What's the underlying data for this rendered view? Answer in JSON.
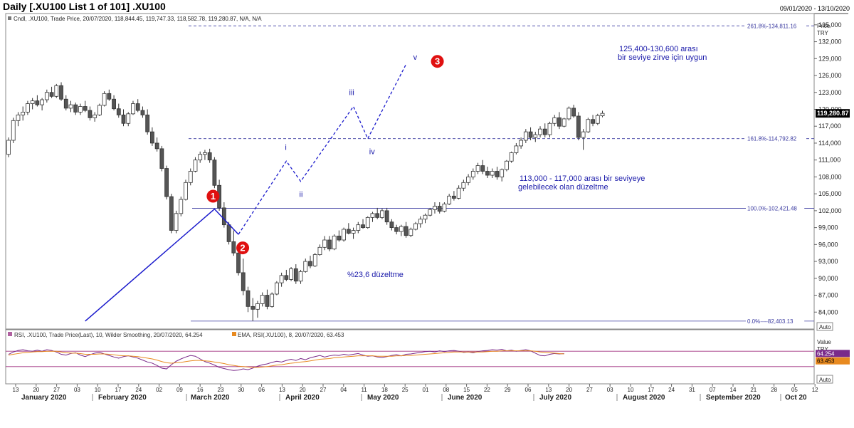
{
  "header": {
    "title": "Daily [.XU100 List 1 of 101] .XU100",
    "date_range": "09/01/2020 - 13/10/2020"
  },
  "price_panel": {
    "legend": "Cndl, .XU100, Trade Price, 20/07/2020, 118,844.45, 119,747.33, 118,582.78, 119,280.87, N/A, N/A",
    "axis_title_1": "Price",
    "axis_title_2": "TRY",
    "auto_label": "Auto",
    "last_price": "119,280.87"
  },
  "rsi_panel": {
    "legend_rsi": "RSI, .XU100, Trade Price(Last),  10, Wilder Smoothing, 20/07/2020, 64.254",
    "legend_ema": "EMA, RSI(.XU100),  8, 20/07/2020, 63.453",
    "axis_title_1": "Value",
    "axis_title_2": "TRY",
    "auto_label": "Auto",
    "rsi_value": "64.254",
    "ema_value": "63.453"
  },
  "colors": {
    "wave": "#1a1acc",
    "annotation_text": "#1a1aaa",
    "marker_red": "#e01010",
    "rsi_line": "#7a2a8a",
    "ema_line": "#e88a20",
    "rsi_band": "#a03080"
  },
  "chart_data": {
    "type": "candlestick",
    "ylim": [
      81000,
      137000
    ],
    "yticks": [
      "84,000",
      "87,000",
      "90,000",
      "93,000",
      "96,000",
      "99,000",
      "102,000",
      "105,000",
      "108,000",
      "111,000",
      "114,000",
      "117,000",
      "120,000",
      "123,000",
      "126,000",
      "129,000",
      "132,000",
      "135,000"
    ],
    "x_ticks": [
      "13",
      "20",
      "27",
      "03",
      "10",
      "17",
      "24",
      "02",
      "09",
      "16",
      "23",
      "30",
      "06",
      "13",
      "20",
      "27",
      "04",
      "11",
      "18",
      "25",
      "01",
      "08",
      "15",
      "22",
      "29",
      "06",
      "13",
      "20",
      "27",
      "03",
      "10",
      "17",
      "24",
      "31",
      "07",
      "14",
      "21",
      "28",
      "05",
      "12"
    ],
    "months": [
      "January 2020",
      "February 2020",
      "March 2020",
      "April 2020",
      "May 2020",
      "June 2020",
      "July 2020",
      "August 2020",
      "September 2020",
      "Oct 20"
    ],
    "levels": [
      {
        "label": "261.8%-134,811.16",
        "value": 134811
      },
      {
        "label": "161.8%-114,792.82",
        "value": 114793
      },
      {
        "label": "100.0%-102,421.48",
        "value": 102421
      },
      {
        "label": "0.0%----82,403.13",
        "value": 82403
      }
    ],
    "candles": [
      [
        112000,
        115000,
        111500,
        114500
      ],
      [
        114500,
        118500,
        114000,
        118000
      ],
      [
        118000,
        119500,
        117000,
        119000
      ],
      [
        119000,
        120500,
        118000,
        119500
      ],
      [
        119500,
        121500,
        119000,
        121000
      ],
      [
        121000,
        122000,
        120000,
        121500
      ],
      [
        121500,
        122500,
        120500,
        120800
      ],
      [
        120800,
        122000,
        119800,
        121700
      ],
      [
        121700,
        123500,
        121200,
        123000
      ],
      [
        123000,
        124000,
        122000,
        122300
      ],
      [
        122300,
        124500,
        122000,
        124200
      ],
      [
        124200,
        124800,
        121500,
        121800
      ],
      [
        121800,
        122500,
        119800,
        120200
      ],
      [
        120200,
        121500,
        119500,
        120800
      ],
      [
        120800,
        121200,
        119000,
        119500
      ],
      [
        119500,
        121000,
        119000,
        120500
      ],
      [
        120500,
        121500,
        119500,
        119800
      ],
      [
        119800,
        120500,
        118000,
        118500
      ],
      [
        118500,
        119500,
        117800,
        119000
      ],
      [
        119000,
        121000,
        118800,
        120700
      ],
      [
        120700,
        123200,
        120500,
        122800
      ],
      [
        122800,
        123500,
        121500,
        121800
      ],
      [
        121800,
        122500,
        119800,
        120100
      ],
      [
        120100,
        121000,
        118500,
        119000
      ],
      [
        119000,
        120000,
        117000,
        117500
      ],
      [
        117500,
        119500,
        117000,
        119200
      ],
      [
        119200,
        121500,
        119000,
        121000
      ],
      [
        121000,
        121800,
        119500,
        119800
      ],
      [
        119800,
        120500,
        118500,
        119000
      ],
      [
        119000,
        120000,
        115500,
        116000
      ],
      [
        116000,
        116800,
        113500,
        114000
      ],
      [
        114000,
        115000,
        112500,
        113000
      ],
      [
        113000,
        113500,
        109000,
        109500
      ],
      [
        109500,
        110000,
        104000,
        104500
      ],
      [
        104500,
        105000,
        98000,
        98500
      ],
      [
        98500,
        102000,
        98000,
        101500
      ],
      [
        101500,
        104500,
        101000,
        104000
      ],
      [
        104000,
        107500,
        103800,
        107000
      ],
      [
        107000,
        109500,
        106500,
        109000
      ],
      [
        109000,
        111500,
        108800,
        111000
      ],
      [
        111000,
        112500,
        110500,
        112000
      ],
      [
        112000,
        112800,
        111000,
        112300
      ],
      [
        112300,
        113000,
        110500,
        111000
      ],
      [
        111000,
        111500,
        106000,
        106500
      ],
      [
        106500,
        107500,
        102000,
        102500
      ],
      [
        102500,
        103500,
        99000,
        99500
      ],
      [
        99500,
        100000,
        96000,
        96500
      ],
      [
        96500,
        98500,
        94000,
        94500
      ],
      [
        94500,
        95500,
        90500,
        91000
      ],
      [
        91000,
        93500,
        87000,
        87800
      ],
      [
        87800,
        88500,
        84000,
        85000
      ],
      [
        85000,
        86500,
        82400,
        84500
      ],
      [
        84500,
        86000,
        83000,
        85500
      ],
      [
        85500,
        87500,
        85000,
        87000
      ],
      [
        87000,
        88000,
        84500,
        85000
      ],
      [
        85000,
        87500,
        84800,
        87200
      ],
      [
        87200,
        89500,
        87000,
        89200
      ],
      [
        89200,
        91000,
        88500,
        90500
      ],
      [
        90500,
        91500,
        89500,
        89800
      ],
      [
        89800,
        92000,
        89500,
        91700
      ],
      [
        91700,
        92500,
        89000,
        89500
      ],
      [
        89500,
        91500,
        89000,
        91200
      ],
      [
        91200,
        93500,
        91000,
        93000
      ],
      [
        93000,
        94000,
        91800,
        92200
      ],
      [
        92200,
        94500,
        92000,
        94200
      ],
      [
        94200,
        96000,
        94000,
        95500
      ],
      [
        95500,
        97500,
        95000,
        96800
      ],
      [
        96800,
        97500,
        94800,
        95200
      ],
      [
        95200,
        97800,
        95000,
        97500
      ],
      [
        97500,
        98500,
        96500,
        96800
      ],
      [
        96800,
        99000,
        96500,
        98700
      ],
      [
        98700,
        99800,
        97800,
        98000
      ],
      [
        98000,
        99000,
        97000,
        98500
      ],
      [
        98500,
        100000,
        98000,
        99500
      ],
      [
        99500,
        100500,
        98800,
        99000
      ],
      [
        99000,
        101000,
        98800,
        100800
      ],
      [
        100800,
        101800,
        100000,
        101500
      ],
      [
        101500,
        102500,
        100500,
        100800
      ],
      [
        100800,
        102400,
        100500,
        102000
      ],
      [
        102000,
        102500,
        99500,
        100000
      ],
      [
        100000,
        100500,
        98500,
        99000
      ],
      [
        99000,
        99500,
        97800,
        98300
      ],
      [
        98300,
        99500,
        97500,
        99200
      ],
      [
        99200,
        100000,
        97200,
        97600
      ],
      [
        97600,
        99000,
        97300,
        98700
      ],
      [
        98700,
        100000,
        98500,
        99700
      ],
      [
        99700,
        101000,
        99000,
        100500
      ],
      [
        100500,
        101500,
        99800,
        101200
      ],
      [
        101200,
        102500,
        101000,
        102200
      ],
      [
        102200,
        103500,
        101500,
        102800
      ],
      [
        102800,
        103500,
        101500,
        101900
      ],
      [
        101900,
        103500,
        101700,
        103200
      ],
      [
        103200,
        105000,
        103000,
        104600
      ],
      [
        104600,
        105500,
        103800,
        104200
      ],
      [
        104200,
        106500,
        104000,
        106000
      ],
      [
        106000,
        107500,
        105500,
        107000
      ],
      [
        107000,
        108500,
        106500,
        108000
      ],
      [
        108000,
        109500,
        107500,
        109000
      ],
      [
        109000,
        110500,
        108500,
        110000
      ],
      [
        110000,
        111000,
        108500,
        109000
      ],
      [
        109000,
        109800,
        107800,
        108300
      ],
      [
        108300,
        109500,
        107800,
        109000
      ],
      [
        109000,
        109800,
        107500,
        108000
      ],
      [
        108000,
        109500,
        107200,
        109300
      ],
      [
        109300,
        111000,
        109000,
        110800
      ],
      [
        110800,
        112500,
        110500,
        112300
      ],
      [
        112300,
        114000,
        112000,
        113500
      ],
      [
        113500,
        115000,
        113000,
        114500
      ],
      [
        114500,
        116500,
        114000,
        116000
      ],
      [
        116000,
        116800,
        114500,
        115000
      ],
      [
        115000,
        116000,
        114200,
        115500
      ],
      [
        115500,
        117000,
        115000,
        116500
      ],
      [
        116500,
        117500,
        115000,
        115500
      ],
      [
        115500,
        117800,
        115000,
        117500
      ],
      [
        117500,
        119000,
        117000,
        118500
      ],
      [
        118500,
        119500,
        116500,
        117000
      ],
      [
        117000,
        118500,
        116800,
        118300
      ],
      [
        118300,
        120500,
        118000,
        120200
      ],
      [
        120200,
        120800,
        118500,
        118800
      ],
      [
        118800,
        119500,
        114500,
        115000
      ],
      [
        115000,
        116500,
        112800,
        116000
      ],
      [
        116000,
        118500,
        115800,
        118200
      ],
      [
        118200,
        119000,
        117000,
        117500
      ],
      [
        117500,
        119200,
        117200,
        118900
      ],
      [
        118844,
        119747,
        118583,
        119281
      ]
    ],
    "wave_path": [
      [
        16,
        "wave_low"
      ],
      [
        43,
        "w1"
      ],
      [
        48,
        "w2"
      ],
      [
        58,
        "wi"
      ],
      [
        61,
        "wii"
      ],
      [
        72,
        "wiii"
      ],
      [
        75,
        "wiv"
      ],
      [
        83,
        "wv"
      ]
    ],
    "wave_values": {
      "wave_low": 82400,
      "w1": 102300,
      "w2": 97800,
      "wi": 110800,
      "wii": 107200,
      "wiii": 120500,
      "wiv": 114800,
      "wv": 128000
    },
    "wave_labels": [
      "i",
      "ii",
      "iii",
      "iv",
      "v"
    ],
    "markers": [
      "1",
      "2",
      "3"
    ],
    "annotations": [
      "125,400-130,600 arası",
      "bir seviye zirve için uygun",
      "113,000 - 117,000 arası bir seviyeye",
      "gelebilecek olan düzeltme",
      "%23,6 düzeltme"
    ],
    "rsi_ylim": [
      0,
      100
    ],
    "rsi_band": [
      70,
      30
    ],
    "rsi": [
      62,
      68,
      72,
      74,
      71,
      70,
      73,
      70,
      74,
      72,
      68,
      62,
      60,
      64,
      66,
      60,
      56,
      61,
      65,
      67,
      63,
      59,
      55,
      52,
      56,
      58,
      55,
      52,
      47,
      42,
      39,
      33,
      26,
      24,
      35,
      44,
      50,
      55,
      59,
      57,
      50,
      43,
      39,
      34,
      28,
      25,
      22,
      20,
      21,
      24,
      22,
      26,
      31,
      35,
      37,
      41,
      44,
      42,
      46,
      49,
      46,
      51,
      48,
      53,
      56,
      59,
      55,
      58,
      60,
      59,
      62,
      60,
      62,
      64,
      60,
      57,
      58,
      55,
      54,
      56,
      59,
      61,
      58,
      62,
      63,
      65,
      67,
      69,
      70,
      68,
      71,
      69,
      71,
      72,
      70,
      67,
      68,
      66,
      69,
      71,
      72,
      74,
      73,
      75,
      71,
      73,
      70,
      72,
      74,
      71,
      65,
      59,
      58,
      62,
      64,
      63,
      64
    ],
    "ema": [
      60,
      62,
      64,
      66,
      67,
      68,
      69,
      69,
      70,
      70,
      70,
      68,
      66,
      65,
      65,
      64,
      62,
      62,
      62,
      63,
      63,
      62,
      61,
      59,
      58,
      58,
      57,
      56,
      54,
      52,
      50,
      47,
      43,
      40,
      39,
      40,
      41,
      43,
      45,
      46,
      46,
      45,
      44,
      42,
      40,
      38,
      35,
      33,
      31,
      30,
      29,
      28,
      28,
      29,
      30,
      32,
      34,
      35,
      37,
      39,
      40,
      42,
      43,
      45,
      47,
      49,
      50,
      51,
      53,
      54,
      55,
      56,
      57,
      58,
      58,
      58,
      58,
      57,
      57,
      57,
      57,
      58,
      58,
      59,
      59,
      60,
      61,
      62,
      63,
      64,
      65,
      66,
      67,
      68,
      68,
      68,
      68,
      68,
      68,
      68,
      69,
      70,
      70,
      71,
      71,
      71,
      71,
      71,
      71,
      71,
      70,
      68,
      67,
      66,
      65,
      64,
      63
    ]
  }
}
